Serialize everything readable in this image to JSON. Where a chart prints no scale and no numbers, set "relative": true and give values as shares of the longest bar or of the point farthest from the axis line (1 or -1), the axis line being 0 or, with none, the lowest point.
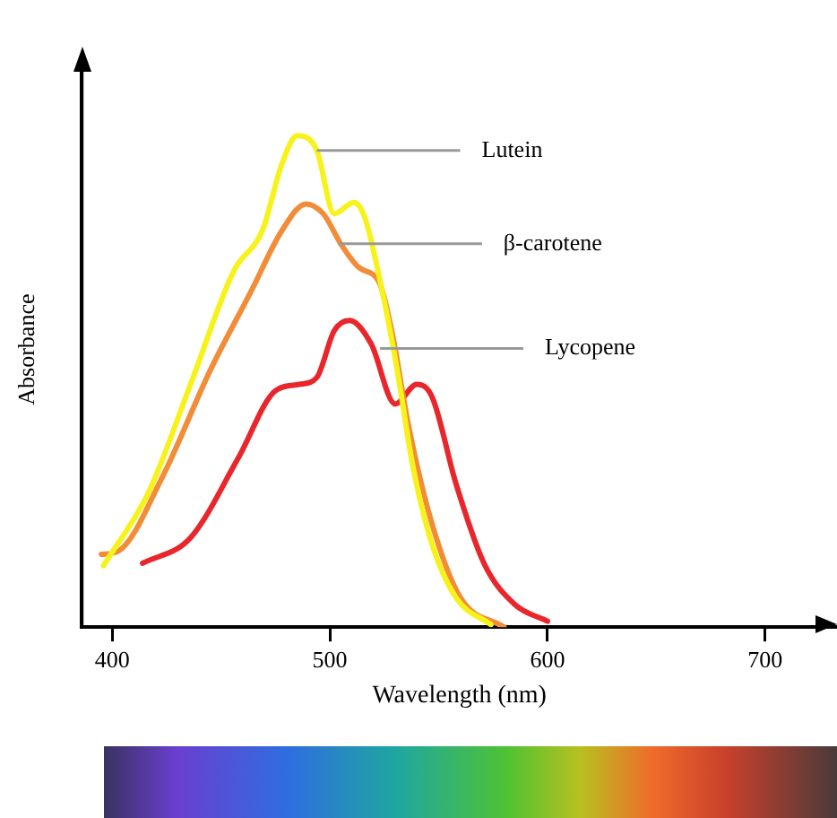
{
  "chart_data": {
    "type": "line",
    "relative": true,
    "xlabel": "Wavelength (nm)",
    "ylabel": "Absorbance",
    "xlim": [
      386,
      733
    ],
    "xticks": [
      400,
      500,
      600,
      700
    ],
    "grid": false,
    "legend": false,
    "marker": "none",
    "line_style": "solid",
    "series": [
      {
        "color": "#f7f21a",
        "x": [
          396,
          417,
          436,
          456,
          469,
          478,
          485,
          494,
          502,
          511,
          516,
          524,
          531,
          538,
          547,
          558,
          574
        ],
        "values": [
          0.125,
          0.277,
          0.494,
          0.726,
          0.807,
          0.943,
          1.0,
          0.97,
          0.841,
          0.864,
          0.834,
          0.685,
          0.522,
          0.331,
          0.168,
          0.06,
          0.005
        ]
      },
      {
        "color": "#f28c38",
        "x": [
          395,
          403,
          423,
          445,
          464,
          478,
          489,
          497,
          505,
          513,
          523,
          529,
          536,
          547,
          560,
          580
        ],
        "values": [
          0.148,
          0.155,
          0.305,
          0.522,
          0.685,
          0.807,
          0.861,
          0.841,
          0.78,
          0.733,
          0.698,
          0.59,
          0.413,
          0.209,
          0.06,
          0
        ]
      },
      {
        "color": "#e8262b",
        "x": [
          414,
          436,
          458,
          475,
          486,
          494,
          502,
          509,
          519,
          530,
          540,
          547,
          558,
          571,
          585,
          600
        ],
        "values": [
          0.13,
          0.182,
          0.345,
          0.481,
          0.494,
          0.508,
          0.603,
          0.624,
          0.576,
          0.454,
          0.494,
          0.468,
          0.291,
          0.128,
          0.046,
          0.012
        ]
      }
    ],
    "annotations": [
      {
        "text": "Lutein",
        "x": 494,
        "y": 0.97
      },
      {
        "text": "β-carotene",
        "x": 504,
        "y": 0.78
      },
      {
        "text": "Lycopene",
        "x": 523,
        "y": 0.567
      }
    ]
  }
}
